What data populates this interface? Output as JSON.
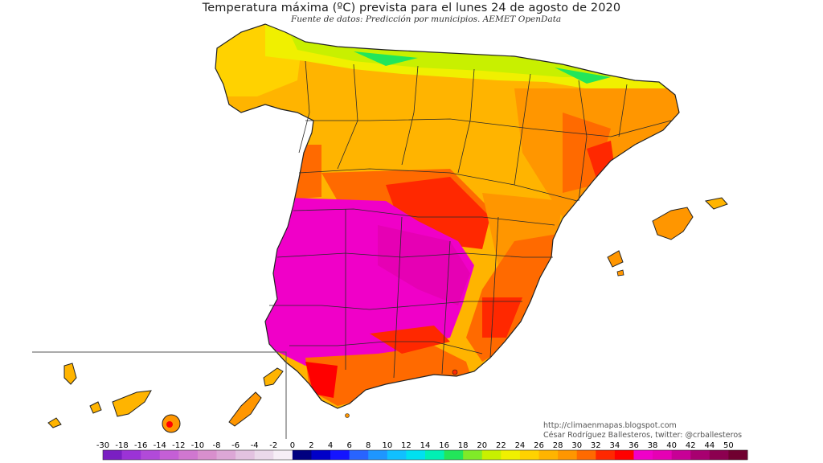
{
  "title": "Temperatura máxima (ºC) prevista para el lunes 24 de agosto de 2020",
  "subtitle": "Fuente de datos: Predicción por municipios. AEMET OpenData",
  "credits": {
    "line1": "http://climaenmapas.blogspot.com",
    "line2": "César Rodríguez Ballesteros, twitter: @crballesteros"
  },
  "legend": {
    "unit": "ºC",
    "bins": [
      {
        "label": "-30",
        "color": "#7a1fc2"
      },
      {
        "label": "-18",
        "color": "#9b33d6"
      },
      {
        "label": "-16",
        "color": "#b14ad9"
      },
      {
        "label": "-14",
        "color": "#c45fd6"
      },
      {
        "label": "-12",
        "color": "#d077d0"
      },
      {
        "label": "-10",
        "color": "#d88fcd"
      },
      {
        "label": "-8",
        "color": "#dca7d6"
      },
      {
        "label": "-6",
        "color": "#e2c2e0"
      },
      {
        "label": "-4",
        "color": "#ead9ea"
      },
      {
        "label": "-2",
        "color": "#f6eef6"
      },
      {
        "label": "0",
        "color": "#000080"
      },
      {
        "label": "2",
        "color": "#0000c8"
      },
      {
        "label": "4",
        "color": "#1414ff"
      },
      {
        "label": "6",
        "color": "#2864ff"
      },
      {
        "label": "8",
        "color": "#1e96ff"
      },
      {
        "label": "10",
        "color": "#10c0ff"
      },
      {
        "label": "12",
        "color": "#00e0f0"
      },
      {
        "label": "14",
        "color": "#00f0b4"
      },
      {
        "label": "16",
        "color": "#22e65a"
      },
      {
        "label": "18",
        "color": "#80ea28"
      },
      {
        "label": "20",
        "color": "#c8f000"
      },
      {
        "label": "22",
        "color": "#f0f000"
      },
      {
        "label": "24",
        "color": "#ffd200"
      },
      {
        "label": "26",
        "color": "#ffb400"
      },
      {
        "label": "28",
        "color": "#ff9600"
      },
      {
        "label": "30",
        "color": "#ff6a00"
      },
      {
        "label": "32",
        "color": "#ff2800"
      },
      {
        "label": "34",
        "color": "#ff0000"
      },
      {
        "label": "36",
        "color": "#f000c8"
      },
      {
        "label": "38",
        "color": "#e600b4"
      },
      {
        "label": "40",
        "color": "#c80096"
      },
      {
        "label": "42",
        "color": "#a80070"
      },
      {
        "label": "44",
        "color": "#8c0050"
      },
      {
        "label": "50",
        "color": "#700030"
      }
    ]
  },
  "regions": [
    {
      "name": "north-coast-band",
      "range": "20-24",
      "color": "#c8f000"
    },
    {
      "name": "northern-plateau",
      "range": "26-30",
      "color": "#ffb400"
    },
    {
      "name": "mediterranean-coast",
      "range": "30-32",
      "color": "#ff6a00"
    },
    {
      "name": "ebro-valley",
      "range": "30-34",
      "color": "#ff2800"
    },
    {
      "name": "southwest-interior",
      "range": "36-40",
      "color": "#f000c8"
    }
  ]
}
